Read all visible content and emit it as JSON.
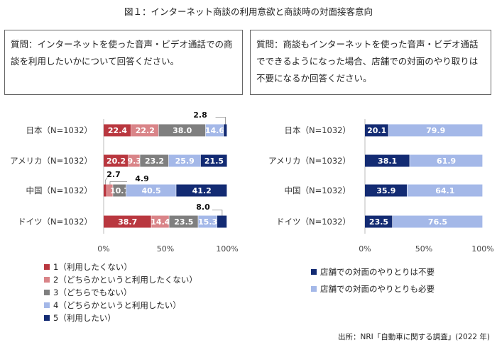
{
  "title": "図１：インターネット商談の利用意欲と商談時の対面接客意向",
  "questions": {
    "left": "質問：インターネットを使った音声・ビデオ通話での商談を利用したいかについて回答ください。",
    "right": "質問：商談もインターネットを使った音声・ビデオ通話でできるようになった場合、店舗での対面のやり取りは不要になるか回答ください。"
  },
  "chart_data": [
    {
      "type": "bar",
      "orientation": "horizontal-stacked",
      "categories": [
        "日本（N=1032）",
        "アメリカ（N=1032）",
        "中国（N=1032）",
        "ドイツ（N=1032）"
      ],
      "series": [
        {
          "name": "1（利用したくない）",
          "color": "#b9373f",
          "values": [
            22.4,
            20.2,
            2.7,
            38.7
          ]
        },
        {
          "name": "2（どちらかというと利用したくない）",
          "color": "#d98488",
          "values": [
            22.2,
            9.3,
            4.9,
            14.4
          ]
        },
        {
          "name": "3（どちらでもない）",
          "color": "#7f7f7f",
          "values": [
            38.0,
            23.2,
            10.7,
            23.5
          ]
        },
        {
          "name": "4（どちらかというと利用したい）",
          "color": "#a4b8e8",
          "values": [
            14.6,
            25.9,
            40.5,
            15.3
          ]
        },
        {
          "name": "5（利用したい）",
          "color": "#132b73",
          "values": [
            2.8,
            21.5,
            41.2,
            8.0
          ]
        }
      ],
      "xlim": [
        0,
        100
      ],
      "xticks": [
        "0%",
        "50%",
        "100%"
      ],
      "legend": "bottom"
    },
    {
      "type": "bar",
      "orientation": "horizontal-stacked",
      "categories": [
        "日本（N=1032）",
        "アメリカ（N=1032）",
        "中国（N=1032）",
        "ドイツ（N=1032）"
      ],
      "series": [
        {
          "name": "店舗での対面のやりとりは不要",
          "color": "#132b73",
          "values": [
            20.1,
            38.1,
            35.9,
            23.5
          ]
        },
        {
          "name": "店舗での対面のやりとりも必要",
          "color": "#a4b8e8",
          "values": [
            79.9,
            61.9,
            64.1,
            76.5
          ]
        }
      ],
      "xlim": [
        0,
        100
      ],
      "xticks": [
        "0%",
        "50%",
        "100%"
      ],
      "legend": "bottom"
    }
  ],
  "source": "出所：NRI「自動車に関する調査」(2022 年)"
}
